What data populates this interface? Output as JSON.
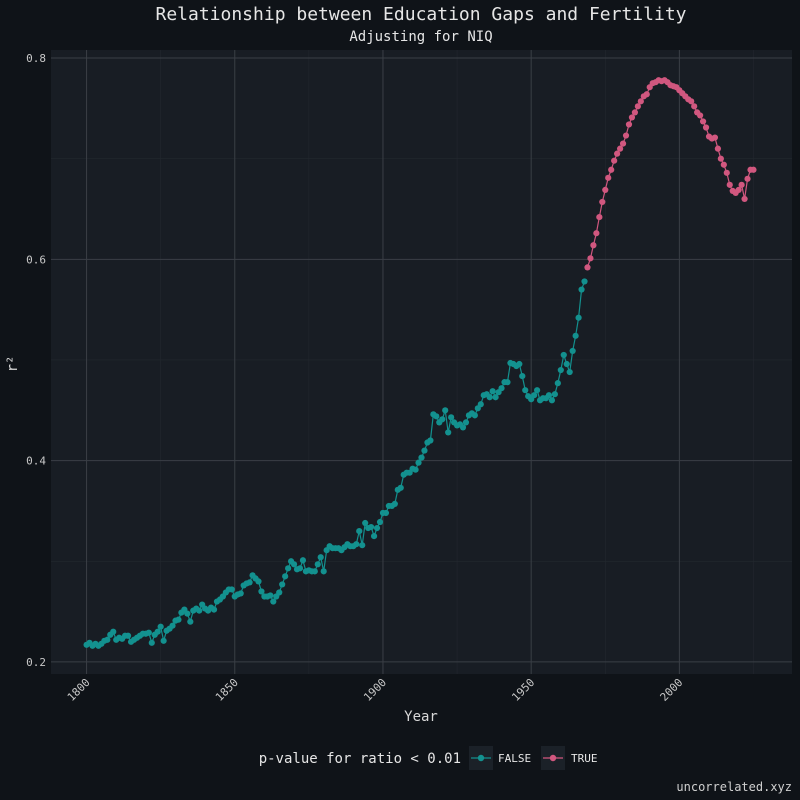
{
  "chart_data": {
    "type": "line",
    "title": "Relationship between Education Gaps and Fertility",
    "subtitle": "Adjusting for NIQ",
    "xlabel": "Year",
    "ylabel": "r²",
    "xlim": [
      1788,
      2038
    ],
    "ylim": [
      0.188,
      0.808
    ],
    "x_ticks": [
      1800,
      1850,
      1900,
      1950,
      2000
    ],
    "x_tick_labels": [
      "1800",
      "1850",
      "1900",
      "1950",
      "2000"
    ],
    "y_ticks": [
      0.2,
      0.4,
      0.6,
      0.8
    ],
    "y_tick_labels": [
      "0.2",
      "0.4",
      "0.6",
      "0.8"
    ],
    "grid": true,
    "legend": {
      "title": "p-value for ratio < 0.01",
      "placement": "bottom",
      "entries": [
        {
          "label": "FALSE",
          "color": "#13918f"
        },
        {
          "label": "TRUE",
          "color": "#d1577f"
        }
      ]
    },
    "colors": {
      "background": "#0f1318",
      "panel": "#181d24",
      "grid_major": "#3a3f46",
      "grid_minor": "#23282f",
      "false_series": "#13918f",
      "true_series": "#d1577f"
    },
    "series": [
      {
        "name": "FALSE",
        "points": [
          [
            1800,
            0.217
          ],
          [
            1801,
            0.219
          ],
          [
            1802,
            0.216
          ],
          [
            1803,
            0.218
          ],
          [
            1804,
            0.216
          ],
          [
            1805,
            0.218
          ],
          [
            1806,
            0.221
          ],
          [
            1807,
            0.222
          ],
          [
            1808,
            0.227
          ],
          [
            1809,
            0.23
          ],
          [
            1810,
            0.222
          ],
          [
            1811,
            0.224
          ],
          [
            1812,
            0.223
          ],
          [
            1813,
            0.226
          ],
          [
            1814,
            0.226
          ],
          [
            1815,
            0.22
          ],
          [
            1816,
            0.222
          ],
          [
            1817,
            0.224
          ],
          [
            1818,
            0.226
          ],
          [
            1819,
            0.228
          ],
          [
            1820,
            0.228
          ],
          [
            1821,
            0.229
          ],
          [
            1822,
            0.219
          ],
          [
            1823,
            0.227
          ],
          [
            1824,
            0.23
          ],
          [
            1825,
            0.235
          ],
          [
            1826,
            0.221
          ],
          [
            1827,
            0.231
          ],
          [
            1828,
            0.233
          ],
          [
            1829,
            0.236
          ],
          [
            1830,
            0.241
          ],
          [
            1831,
            0.242
          ],
          [
            1832,
            0.249
          ],
          [
            1833,
            0.252
          ],
          [
            1834,
            0.248
          ],
          [
            1835,
            0.24
          ],
          [
            1836,
            0.251
          ],
          [
            1837,
            0.253
          ],
          [
            1838,
            0.251
          ],
          [
            1839,
            0.257
          ],
          [
            1840,
            0.253
          ],
          [
            1841,
            0.251
          ],
          [
            1842,
            0.254
          ],
          [
            1843,
            0.252
          ],
          [
            1844,
            0.26
          ],
          [
            1845,
            0.262
          ],
          [
            1846,
            0.265
          ],
          [
            1847,
            0.269
          ],
          [
            1848,
            0.272
          ],
          [
            1849,
            0.272
          ],
          [
            1850,
            0.265
          ],
          [
            1851,
            0.267
          ],
          [
            1852,
            0.268
          ],
          [
            1853,
            0.276
          ],
          [
            1854,
            0.278
          ],
          [
            1855,
            0.279
          ],
          [
            1856,
            0.286
          ],
          [
            1857,
            0.283
          ],
          [
            1858,
            0.28
          ],
          [
            1859,
            0.27
          ],
          [
            1860,
            0.265
          ],
          [
            1861,
            0.265
          ],
          [
            1862,
            0.266
          ],
          [
            1863,
            0.26
          ],
          [
            1864,
            0.265
          ],
          [
            1865,
            0.269
          ],
          [
            1866,
            0.277
          ],
          [
            1867,
            0.285
          ],
          [
            1868,
            0.293
          ],
          [
            1869,
            0.3
          ],
          [
            1870,
            0.297
          ],
          [
            1871,
            0.292
          ],
          [
            1872,
            0.293
          ],
          [
            1873,
            0.301
          ],
          [
            1874,
            0.29
          ],
          [
            1875,
            0.291
          ],
          [
            1876,
            0.29
          ],
          [
            1877,
            0.29
          ],
          [
            1878,
            0.297
          ],
          [
            1879,
            0.304
          ],
          [
            1880,
            0.29
          ],
          [
            1881,
            0.311
          ],
          [
            1882,
            0.315
          ],
          [
            1883,
            0.313
          ],
          [
            1884,
            0.313
          ],
          [
            1885,
            0.313
          ],
          [
            1886,
            0.311
          ],
          [
            1887,
            0.314
          ],
          [
            1888,
            0.317
          ],
          [
            1889,
            0.315
          ],
          [
            1890,
            0.315
          ],
          [
            1891,
            0.317
          ],
          [
            1892,
            0.33
          ],
          [
            1893,
            0.316
          ],
          [
            1894,
            0.338
          ],
          [
            1895,
            0.333
          ],
          [
            1896,
            0.334
          ],
          [
            1897,
            0.325
          ],
          [
            1898,
            0.333
          ],
          [
            1899,
            0.339
          ],
          [
            1900,
            0.348
          ],
          [
            1901,
            0.348
          ],
          [
            1902,
            0.355
          ],
          [
            1903,
            0.355
          ],
          [
            1904,
            0.357
          ],
          [
            1905,
            0.371
          ],
          [
            1906,
            0.373
          ],
          [
            1907,
            0.386
          ],
          [
            1908,
            0.388
          ],
          [
            1909,
            0.388
          ],
          [
            1910,
            0.392
          ],
          [
            1911,
            0.391
          ],
          [
            1912,
            0.398
          ],
          [
            1913,
            0.403
          ],
          [
            1914,
            0.41
          ],
          [
            1915,
            0.418
          ],
          [
            1916,
            0.42
          ],
          [
            1917,
            0.446
          ],
          [
            1918,
            0.444
          ],
          [
            1919,
            0.438
          ],
          [
            1920,
            0.441
          ],
          [
            1921,
            0.45
          ],
          [
            1922,
            0.428
          ],
          [
            1923,
            0.443
          ],
          [
            1924,
            0.438
          ],
          [
            1925,
            0.435
          ],
          [
            1926,
            0.436
          ],
          [
            1927,
            0.433
          ],
          [
            1928,
            0.438
          ],
          [
            1929,
            0.445
          ],
          [
            1930,
            0.447
          ],
          [
            1931,
            0.445
          ],
          [
            1932,
            0.452
          ],
          [
            1933,
            0.456
          ],
          [
            1934,
            0.465
          ],
          [
            1935,
            0.466
          ],
          [
            1936,
            0.463
          ],
          [
            1937,
            0.469
          ],
          [
            1938,
            0.463
          ],
          [
            1939,
            0.468
          ],
          [
            1940,
            0.472
          ],
          [
            1941,
            0.478
          ],
          [
            1942,
            0.478
          ],
          [
            1943,
            0.497
          ],
          [
            1944,
            0.496
          ],
          [
            1945,
            0.494
          ],
          [
            1946,
            0.496
          ],
          [
            1947,
            0.484
          ],
          [
            1948,
            0.47
          ],
          [
            1949,
            0.464
          ],
          [
            1950,
            0.461
          ],
          [
            1951,
            0.465
          ],
          [
            1952,
            0.47
          ],
          [
            1953,
            0.46
          ],
          [
            1954,
            0.462
          ],
          [
            1955,
            0.462
          ],
          [
            1956,
            0.465
          ],
          [
            1957,
            0.46
          ],
          [
            1958,
            0.466
          ],
          [
            1959,
            0.477
          ],
          [
            1960,
            0.49
          ],
          [
            1961,
            0.505
          ],
          [
            1962,
            0.496
          ],
          [
            1963,
            0.488
          ],
          [
            1964,
            0.509
          ],
          [
            1965,
            0.524
          ],
          [
            1966,
            0.542
          ],
          [
            1967,
            0.57
          ],
          [
            1968,
            0.578
          ]
        ]
      },
      {
        "name": "TRUE",
        "points": [
          [
            1969,
            0.592
          ],
          [
            1970,
            0.601
          ],
          [
            1971,
            0.614
          ],
          [
            1972,
            0.626
          ],
          [
            1973,
            0.642
          ],
          [
            1974,
            0.657
          ],
          [
            1975,
            0.669
          ],
          [
            1976,
            0.681
          ],
          [
            1977,
            0.689
          ],
          [
            1978,
            0.698
          ],
          [
            1979,
            0.705
          ],
          [
            1980,
            0.71
          ],
          [
            1981,
            0.715
          ],
          [
            1982,
            0.723
          ],
          [
            1983,
            0.734
          ],
          [
            1984,
            0.741
          ],
          [
            1985,
            0.746
          ],
          [
            1986,
            0.752
          ],
          [
            1987,
            0.757
          ],
          [
            1988,
            0.762
          ],
          [
            1989,
            0.764
          ],
          [
            1990,
            0.771
          ],
          [
            1991,
            0.775
          ],
          [
            1992,
            0.776
          ],
          [
            1993,
            0.778
          ],
          [
            1994,
            0.777
          ],
          [
            1995,
            0.778
          ],
          [
            1996,
            0.776
          ],
          [
            1997,
            0.773
          ],
          [
            1998,
            0.772
          ],
          [
            1999,
            0.771
          ],
          [
            2000,
            0.768
          ],
          [
            2001,
            0.765
          ],
          [
            2002,
            0.762
          ],
          [
            2003,
            0.759
          ],
          [
            2004,
            0.757
          ],
          [
            2005,
            0.752
          ],
          [
            2006,
            0.746
          ],
          [
            2007,
            0.743
          ],
          [
            2008,
            0.737
          ],
          [
            2009,
            0.731
          ],
          [
            2010,
            0.722
          ],
          [
            2011,
            0.72
          ],
          [
            2012,
            0.721
          ],
          [
            2013,
            0.71
          ],
          [
            2014,
            0.7
          ],
          [
            2015,
            0.694
          ],
          [
            2016,
            0.686
          ],
          [
            2017,
            0.674
          ],
          [
            2018,
            0.668
          ],
          [
            2019,
            0.666
          ],
          [
            2020,
            0.669
          ],
          [
            2021,
            0.674
          ],
          [
            2022,
            0.66
          ],
          [
            2023,
            0.68
          ],
          [
            2024,
            0.689
          ],
          [
            2025,
            0.689
          ]
        ]
      }
    ]
  },
  "footer": {
    "watermark": "uncorrelated.xyz"
  }
}
